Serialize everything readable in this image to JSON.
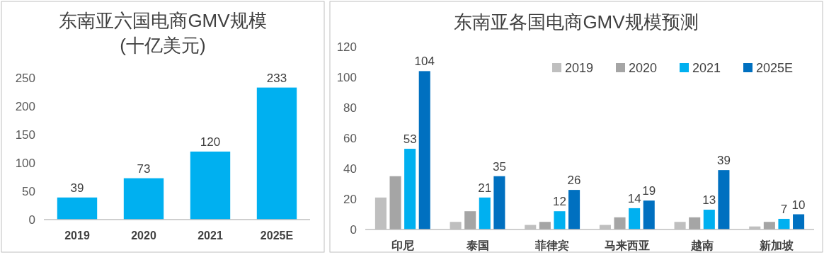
{
  "chart_data": [
    {
      "type": "bar",
      "title": "东南亚六国电商GMV规模\n(十亿美元)",
      "categories": [
        "2019",
        "2020",
        "2021",
        "2025E"
      ],
      "values": [
        39,
        73,
        120,
        233
      ],
      "color": "#00b0f0",
      "ylim": [
        0,
        250
      ],
      "yticks": [
        0,
        50,
        100,
        150,
        200,
        250
      ],
      "data_labels": true,
      "grid": false
    },
    {
      "type": "bar",
      "title": "东南亚各国电商GMV规模预测",
      "categories": [
        "印尼",
        "泰国",
        "菲律宾",
        "马来西亚",
        "越南",
        "新加坡"
      ],
      "series": [
        {
          "name": "2019",
          "color": "#bfbfbf",
          "values": [
            21,
            5,
            3,
            3,
            5,
            2
          ]
        },
        {
          "name": "2020",
          "color": "#a5a5a5",
          "values": [
            35,
            12,
            5,
            8,
            8,
            5
          ]
        },
        {
          "name": "2021",
          "color": "#00b0f0",
          "values": [
            53,
            21,
            12,
            14,
            13,
            7
          ],
          "value_labels": [
            "53",
            "21",
            "12",
            "14",
            "13",
            "7"
          ]
        },
        {
          "name": "2025E",
          "color": "#0070c0",
          "values": [
            104,
            35,
            26,
            19,
            39,
            10
          ],
          "value_labels": [
            "104",
            "35",
            "26",
            "19",
            "39",
            "10"
          ]
        }
      ],
      "ylim": [
        0,
        120
      ],
      "yticks": [
        0,
        20,
        40,
        60,
        80,
        100,
        120
      ],
      "legend": "top right",
      "grid": false
    }
  ]
}
